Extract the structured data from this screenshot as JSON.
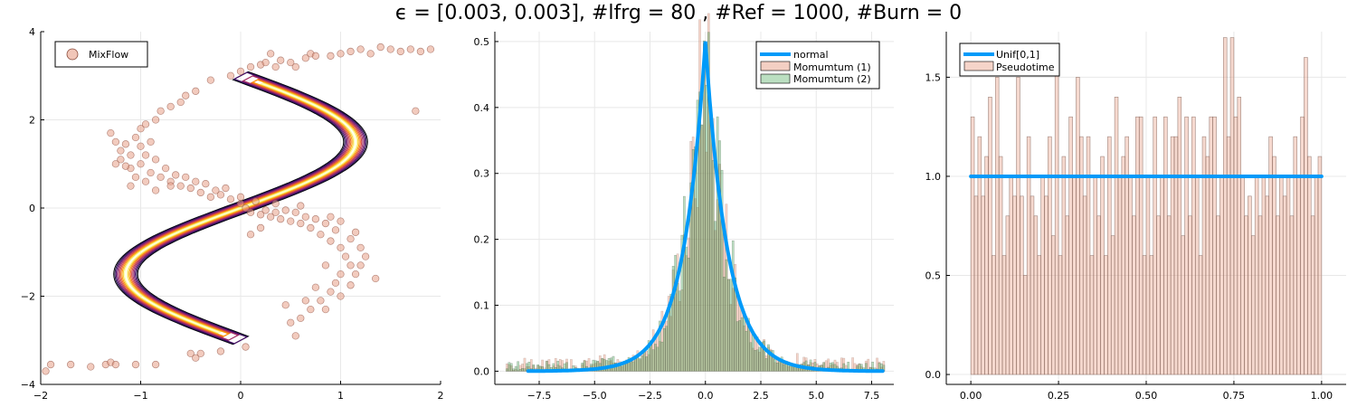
{
  "figure": {
    "title": "ϵ = [0.003, 0.003], #lfrg = 80 , #Ref = 1000, #Burn = 0"
  },
  "chart_data": [
    {
      "type": "scatter",
      "xlim": [
        -2,
        2
      ],
      "ylim": [
        -4,
        4
      ],
      "x_ticks": [
        "−2",
        "−1",
        "0",
        "1",
        "2"
      ],
      "y_ticks": [
        "−4",
        "−2",
        "0",
        "2",
        "4"
      ],
      "grid": true,
      "legend_position": "top-left",
      "contour": {
        "description_values": "banana-shaped S density contours",
        "levels": 10
      },
      "series": [
        {
          "name": "MixFlow",
          "color": "#e8a088",
          "points": [
            [
              -1.95,
              -3.7
            ],
            [
              -1.9,
              -3.55
            ],
            [
              -1.7,
              -3.55
            ],
            [
              -1.5,
              -3.6
            ],
            [
              -1.35,
              -3.55
            ],
            [
              -1.3,
              -3.5
            ],
            [
              -1.25,
              -3.55
            ],
            [
              -1.05,
              -3.55
            ],
            [
              -0.85,
              -3.55
            ],
            [
              -0.5,
              -3.3
            ],
            [
              -0.45,
              -3.4
            ],
            [
              -0.4,
              -3.3
            ],
            [
              -0.2,
              -3.25
            ],
            [
              0.05,
              -3.15
            ],
            [
              0.55,
              -2.9
            ],
            [
              -0.3,
              2.9
            ],
            [
              -0.1,
              3.0
            ],
            [
              0.0,
              3.1
            ],
            [
              0.1,
              3.2
            ],
            [
              0.2,
              3.25
            ],
            [
              0.25,
              3.3
            ],
            [
              0.35,
              3.2
            ],
            [
              0.4,
              3.35
            ],
            [
              0.5,
              3.3
            ],
            [
              0.55,
              3.2
            ],
            [
              0.65,
              3.4
            ],
            [
              0.7,
              3.5
            ],
            [
              0.75,
              3.45
            ],
            [
              0.9,
              3.45
            ],
            [
              1.0,
              3.5
            ],
            [
              1.1,
              3.55
            ],
            [
              1.2,
              3.6
            ],
            [
              1.3,
              3.5
            ],
            [
              1.4,
              3.65
            ],
            [
              1.5,
              3.6
            ],
            [
              1.6,
              3.55
            ],
            [
              1.7,
              3.6
            ],
            [
              1.8,
              3.55
            ],
            [
              1.9,
              3.6
            ],
            [
              1.75,
              2.2
            ],
            [
              0.3,
              3.5
            ],
            [
              -1.25,
              1.5
            ],
            [
              -1.2,
              1.3
            ],
            [
              -1.15,
              1.45
            ],
            [
              -1.1,
              1.2
            ],
            [
              -1.2,
              1.1
            ],
            [
              -1.1,
              0.9
            ],
            [
              -1.05,
              1.6
            ],
            [
              -1.0,
              1.8
            ],
            [
              -0.95,
              1.9
            ],
            [
              -0.9,
              1.5
            ],
            [
              -0.85,
              2.0
            ],
            [
              -0.8,
              2.2
            ],
            [
              -0.7,
              2.3
            ],
            [
              -0.6,
              2.4
            ],
            [
              -0.55,
              2.55
            ],
            [
              -0.45,
              2.65
            ],
            [
              -1.0,
              1.0
            ],
            [
              -0.9,
              0.8
            ],
            [
              -0.8,
              0.7
            ],
            [
              -0.7,
              0.6
            ],
            [
              -0.6,
              0.5
            ],
            [
              -0.5,
              0.45
            ],
            [
              -0.4,
              0.35
            ],
            [
              -0.3,
              0.25
            ],
            [
              -0.2,
              0.3
            ],
            [
              -0.1,
              0.2
            ],
            [
              0.0,
              0.1
            ],
            [
              0.05,
              0.0
            ],
            [
              0.1,
              -0.1
            ],
            [
              0.2,
              -0.15
            ],
            [
              0.3,
              -0.2
            ],
            [
              0.4,
              -0.25
            ],
            [
              0.5,
              -0.3
            ],
            [
              0.6,
              -0.35
            ],
            [
              0.7,
              -0.45
            ],
            [
              0.8,
              -0.6
            ],
            [
              0.9,
              -0.75
            ],
            [
              1.0,
              -0.9
            ],
            [
              1.05,
              -1.1
            ],
            [
              1.1,
              -1.3
            ],
            [
              1.0,
              -1.5
            ],
            [
              0.95,
              -1.7
            ],
            [
              0.9,
              -1.9
            ],
            [
              0.8,
              -2.1
            ],
            [
              0.7,
              -2.3
            ],
            [
              0.6,
              -2.5
            ],
            [
              0.5,
              -2.6
            ],
            [
              -1.15,
              0.95
            ],
            [
              -1.05,
              0.7
            ],
            [
              -0.95,
              0.6
            ],
            [
              -0.85,
              1.1
            ],
            [
              -0.75,
              0.9
            ],
            [
              -0.65,
              0.75
            ],
            [
              -0.55,
              0.7
            ],
            [
              -0.35,
              0.55
            ],
            [
              -0.25,
              0.4
            ],
            [
              0.15,
              0.15
            ],
            [
              0.25,
              -0.05
            ],
            [
              0.35,
              -0.1
            ],
            [
              0.45,
              -0.05
            ],
            [
              0.55,
              -0.1
            ],
            [
              0.65,
              -0.2
            ],
            [
              0.75,
              -0.25
            ],
            [
              0.85,
              -0.35
            ],
            [
              0.95,
              -0.5
            ],
            [
              1.1,
              -0.7
            ],
            [
              1.2,
              -0.9
            ],
            [
              1.25,
              -1.1
            ],
            [
              1.2,
              -1.3
            ],
            [
              1.15,
              -1.5
            ],
            [
              1.1,
              -1.75
            ],
            [
              1.0,
              -2.0
            ],
            [
              0.85,
              -2.3
            ],
            [
              1.35,
              -1.6
            ],
            [
              -1.3,
              1.7
            ],
            [
              -1.25,
              1.0
            ],
            [
              -1.0,
              1.4
            ],
            [
              -0.95,
              1.2
            ],
            [
              -0.7,
              0.5
            ],
            [
              -0.45,
              0.6
            ],
            [
              -0.15,
              0.45
            ],
            [
              0.0,
              0.25
            ],
            [
              0.35,
              0.1
            ],
            [
              0.6,
              0.05
            ],
            [
              0.9,
              -0.2
            ],
            [
              1.0,
              -0.3
            ],
            [
              1.15,
              -0.55
            ],
            [
              0.85,
              -1.3
            ],
            [
              0.75,
              -1.8
            ],
            [
              0.65,
              -2.1
            ],
            [
              0.45,
              -2.2
            ],
            [
              -0.85,
              0.4
            ],
            [
              -1.1,
              0.5
            ],
            [
              0.1,
              -0.6
            ],
            [
              0.2,
              -0.45
            ]
          ]
        }
      ]
    },
    {
      "type": "bar",
      "xlim": [
        -9.5,
        8.5
      ],
      "ylim": [
        -0.02,
        0.515
      ],
      "x_ticks": [
        "−7.5",
        "−5.0",
        "−2.5",
        "0.0",
        "2.5",
        "5.0",
        "7.5"
      ],
      "y_ticks": [
        "0.0",
        "0.1",
        "0.2",
        "0.3",
        "0.4",
        "0.5"
      ],
      "grid": true,
      "legend_position": "top-right",
      "series": [
        {
          "name": "normal",
          "kind": "line",
          "distribution": "Laplace(0,1) density",
          "x_range": [
            -8,
            8
          ],
          "color": "#009af9"
        },
        {
          "name": "Momumtum (1)",
          "kind": "histogram",
          "color": "#e8a088"
        },
        {
          "name": "Momumtum (2)",
          "kind": "histogram",
          "color": "#3da44d"
        }
      ]
    },
    {
      "type": "bar",
      "xlim": [
        -0.07,
        1.07
      ],
      "ylim": [
        -0.05,
        1.73
      ],
      "x_ticks": [
        "0.00",
        "0.25",
        "0.50",
        "0.75",
        "1.00"
      ],
      "y_ticks": [
        "0.0",
        "0.5",
        "1.0",
        "1.5"
      ],
      "grid": true,
      "legend_position": "top-left",
      "series": [
        {
          "name": "Unif[0,1]",
          "kind": "line",
          "x": [
            0,
            1
          ],
          "values": [
            1.0,
            1.0
          ],
          "color": "#009af9"
        },
        {
          "name": "Pseudotime",
          "kind": "histogram",
          "color": "#e8a088",
          "bin_width": 0.01,
          "values": [
            1.3,
            0.9,
            1.2,
            0.9,
            1.1,
            1.4,
            0.6,
            1.5,
            1.1,
            0.6,
            0.8,
            1.0,
            0.9,
            1.5,
            0.9,
            0.5,
            1.2,
            0.9,
            0.8,
            0.6,
            1.0,
            0.9,
            1.2,
            0.7,
            1.6,
            0.6,
            1.1,
            0.8,
            1.3,
            1.0,
            1.5,
            1.2,
            0.9,
            1.2,
            0.6,
            1.0,
            0.8,
            1.1,
            0.6,
            1.2,
            0.7,
            1.4,
            1.0,
            1.1,
            1.2,
            1.0,
            0.8,
            1.3,
            1.3,
            0.6,
            1.0,
            0.6,
            1.3,
            0.8,
            1.0,
            1.3,
            0.8,
            1.2,
            1.2,
            1.4,
            0.7,
            1.3,
            0.8,
            1.3,
            1.0,
            0.6,
            1.2,
            1.1,
            1.3,
            1.3,
            0.8,
            1.0,
            1.7,
            1.2,
            1.7,
            1.3,
            1.4,
            1.0,
            0.8,
            0.9,
            0.7,
            1.0,
            0.8,
            1.0,
            0.9,
            1.2,
            1.1,
            0.8,
            1.0,
            0.9,
            1.0,
            0.8,
            1.2,
            1.0,
            1.3,
            1.6,
            1.1,
            0.8,
            1.0,
            1.1
          ]
        }
      ]
    }
  ]
}
